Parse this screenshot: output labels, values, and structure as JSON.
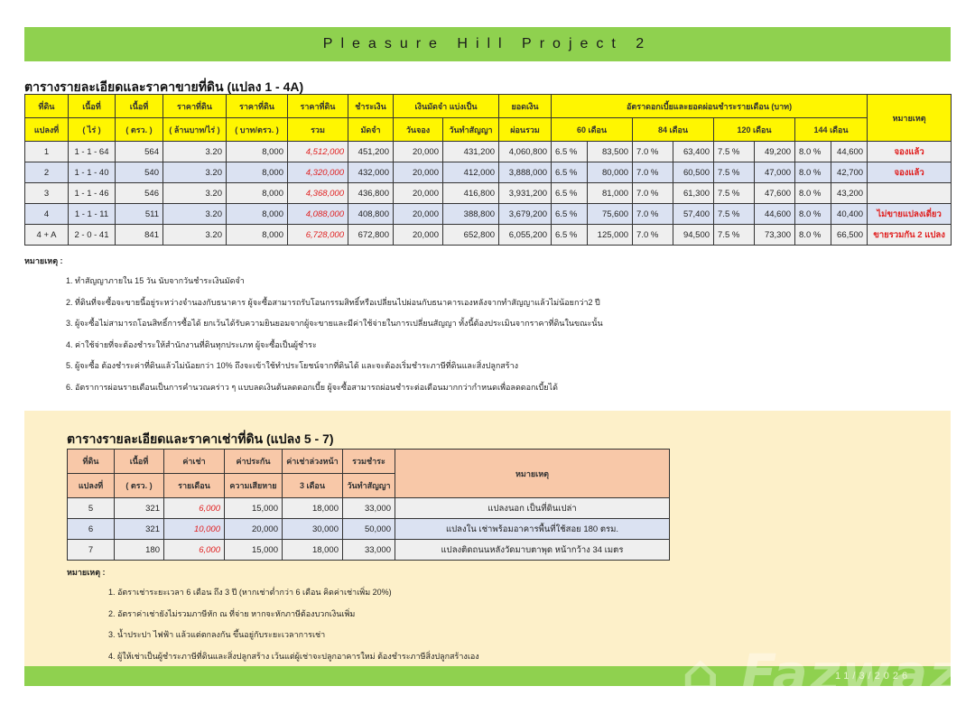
{
  "header": {
    "title": "Pleasure Hill Project 2"
  },
  "sale": {
    "title": "ตารางรายละเอียดและราคาขายที่ดิน (แปลง 1 - 4A)",
    "headers": {
      "plot": [
        "ที่ดิน",
        "แปลงที่"
      ],
      "area_rai": [
        "เนื้อที่",
        "( ไร่ )"
      ],
      "area_wa": [
        "เนื้อที่",
        "( ตรว. )"
      ],
      "price_mrai": [
        "ราคาที่ดิน",
        "( ล้านบาท/ไร่ )"
      ],
      "price_wa": [
        "ราคาที่ดิน",
        "( บาท/ตรว. )"
      ],
      "price_total": [
        "ราคาที่ดิน",
        "รวม"
      ],
      "deposit": [
        "ชำระเงิน",
        "มัดจำ"
      ],
      "deposit_split": "เงินมัดจำ  แบ่งเป็น",
      "booking": "วันจอง",
      "contract": "วันทำสัญญา",
      "balance": [
        "ยอดเงิน",
        "ผ่อนรวม"
      ],
      "installments": "อัตราดอกเบี้ยและยอดผ่อนชำระรายเดือน (บาท)",
      "terms": [
        "60 เดือน",
        "84 เดือน",
        "120 เดือน",
        "144 เดือน"
      ],
      "remark": "หมายเหตุ"
    },
    "rows": [
      [
        "1",
        "1 - 1 - 64",
        "564",
        "3.20",
        "8,000",
        "4,512,000",
        "451,200",
        "20,000",
        "431,200",
        "4,060,800",
        "6.5 %",
        "83,500",
        "7.0 %",
        "63,400",
        "7.5 %",
        "49,200",
        "8.0 %",
        "44,600",
        "จองแล้ว"
      ],
      [
        "2",
        "1 - 1 - 40",
        "540",
        "3.20",
        "8,000",
        "4,320,000",
        "432,000",
        "20,000",
        "412,000",
        "3,888,000",
        "6.5 %",
        "80,000",
        "7.0 %",
        "60,500",
        "7.5 %",
        "47,000",
        "8.0 %",
        "42,700",
        "จองแล้ว"
      ],
      [
        "3",
        "1 - 1 - 46",
        "546",
        "3.20",
        "8,000",
        "4,368,000",
        "436,800",
        "20,000",
        "416,800",
        "3,931,200",
        "6.5 %",
        "81,000",
        "7.0 %",
        "61,300",
        "7.5 %",
        "47,600",
        "8.0 %",
        "43,200",
        ""
      ],
      [
        "4",
        "1 - 1 - 11",
        "511",
        "3.20",
        "8,000",
        "4,088,000",
        "408,800",
        "20,000",
        "388,800",
        "3,679,200",
        "6.5 %",
        "75,600",
        "7.0 %",
        "57,400",
        "7.5 %",
        "44,600",
        "8.0 %",
        "40,400",
        "ไม่ขายแปลงเดี่ยว"
      ],
      [
        "4 + A",
        "2 - 0 - 41",
        "841",
        "3.20",
        "8,000",
        "6,728,000",
        "672,800",
        "20,000",
        "652,800",
        "6,055,200",
        "6.5 %",
        "125,000",
        "7.0 %",
        "94,500",
        "7.5 %",
        "73,300",
        "8.0 %",
        "66,500",
        "ขายรวมกัน 2 แปลง"
      ]
    ],
    "notes_label": "หมายเหตุ :",
    "notes": [
      "1. ทำสัญญาภายใน 15 วัน นับจากวันชำระเงินมัดจำ",
      "2. ที่ดินที่จะซื้อจะขายนี้อยู่ระหว่างจำนองกับธนาคาร  ผู้จะซื้อสามารถรับโอนกรรมสิทธิ์หรือเปลี่ยนไปผ่อนกับธนาคารเองหลังจากทำสัญญาแล้วไม่น้อยกว่า2 ปี",
      "3. ผู้จะซื้อไม่สามารถโอนสิทธิ์การซื้อได้   ยกเว้นได้รับความยินยอมจากผู้จะขายและมีค่าใช้จ่ายในการเปลี่ยนสัญญา  ทั้งนี้ต้องประเมินจากราคาที่ดินในขณะนั้น",
      "4. ค่าใช้จ่ายที่จะต้องชำระให้สำนักงานที่ดินทุกประเภท  ผู้จะซื้อเป็นผู้ชำระ",
      "5. ผู้จะซื้อ ต้องชำระค่าที่ดินแล้วไม่น้อยกว่า 10% ถึงจะเข้าใช้ทำประโยชน์จากที่ดินได้  และจะต้องเริ่มชำระภาษีที่ดินและสิ่งปลูกสร้าง",
      "6. อัตราการผ่อนรายเดือนเป็นการคำนวณคร่าว ๆ แบบลดเงินต้นลดดอกเบี้ย  ผู้จะซื้อสามารถผ่อนชำระต่อเดือนมากกว่ากำหนดเพื่อลดดอกเบี้ยได้"
    ]
  },
  "rent": {
    "title": "ตารางรายละเอียดและราคาเช่าที่ดิน (แปลง 5 - 7)",
    "headers": {
      "plot": [
        "ที่ดิน",
        "แปลงที่"
      ],
      "area_wa": [
        "เนื้อที่",
        "( ตรว. )"
      ],
      "rent": [
        "ค่าเช่า",
        "รายเดือน"
      ],
      "insurance": [
        "ค่าประกัน",
        "ความเสียหาย"
      ],
      "advance": [
        "ค่าเช่าล่วงหน้า",
        "3 เดือน"
      ],
      "total": [
        "รวมชำระ",
        "วันทำสัญญา"
      ],
      "remark": "หมายเหตุ"
    },
    "rows": [
      [
        "5",
        "321",
        "6,000",
        "15,000",
        "18,000",
        "33,000",
        "แปลงนอก เป็นที่ดินเปล่า"
      ],
      [
        "6",
        "321",
        "10,000",
        "20,000",
        "30,000",
        "50,000",
        "แปลงใน  เช่าพร้อมอาคารพื้นที่ใช้สอย 180 ตรม."
      ],
      [
        "7",
        "180",
        "6,000",
        "15,000",
        "18,000",
        "33,000",
        "แปลงติดถนนหลังวัดมาบตาพุด หน้ากว้าง 34 เมตร"
      ]
    ],
    "notes_label": "หมายเหตุ :",
    "notes": [
      "1. อัตราเช่าระยะเวลา 6 เดือน ถึง 3 ปี (หากเช่าต่ำกว่า 6 เดือน คิดค่าเช่าเพิ่ม 20%)",
      "2. อัตราค่าเช่ายังไม่รวมภาษีหัก ณ ที่จ่าย หากจะหักภาษีต้องบวกเงินเพิ่ม",
      "3. น้ำประปา ไฟฟ้า แล้วแต่ตกลงกัน ขึ้นอยู่กับระยะเวลาการเช่า",
      "4. ผู้ให้เช่าเป็นผู้ชำระภาษีที่ดินและสิ่งปลูกสร้าง เว้นแต่ผู้เช่าจะปลูกอาคารใหม่ ต้องชำระภาษีสิ่งปลูกสร้างเอง"
    ]
  },
  "footer": {
    "date": "11/3/2026",
    "watermark": "FazWaz"
  },
  "colors": {
    "green": "#8fd14f",
    "yellow": "#fff600",
    "salmon": "#f8c8a8",
    "cream": "#fdf0c9",
    "red": "#e02020",
    "row_blue": "#dbe2f2",
    "row_gray": "#efefef"
  }
}
